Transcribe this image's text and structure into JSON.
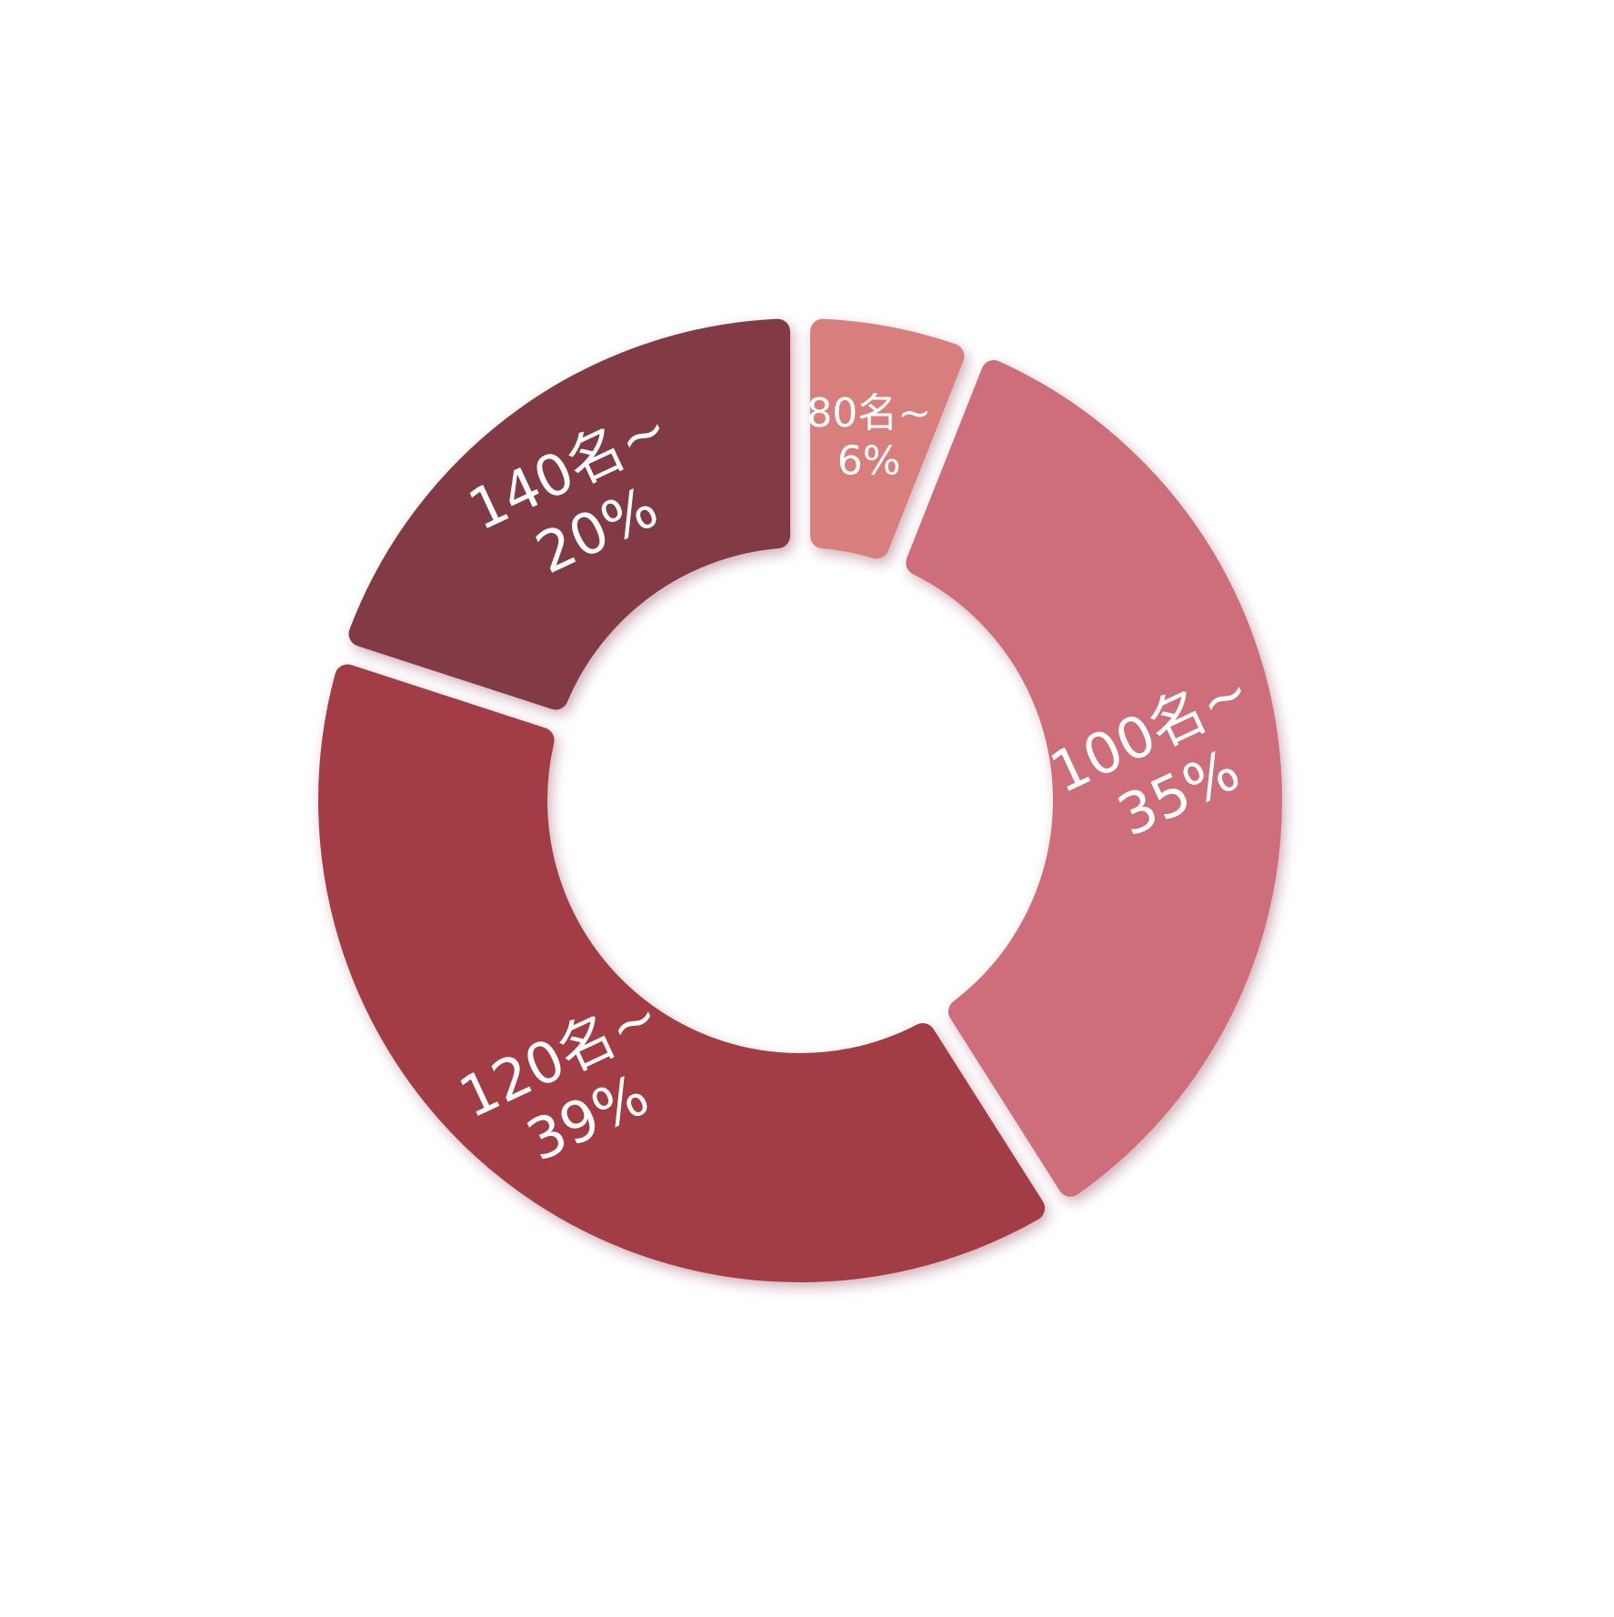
{
  "chart_data": {
    "type": "donut",
    "categories": [
      "80名~",
      "100名~",
      "120名~",
      "140名~"
    ],
    "values": [
      6,
      35,
      39,
      20
    ],
    "value_labels": [
      "6%",
      "35%",
      "39%",
      "20%"
    ],
    "colors": [
      "#d87f7e",
      "#cd6e7a",
      "#a33e44",
      "#823a44"
    ]
  }
}
